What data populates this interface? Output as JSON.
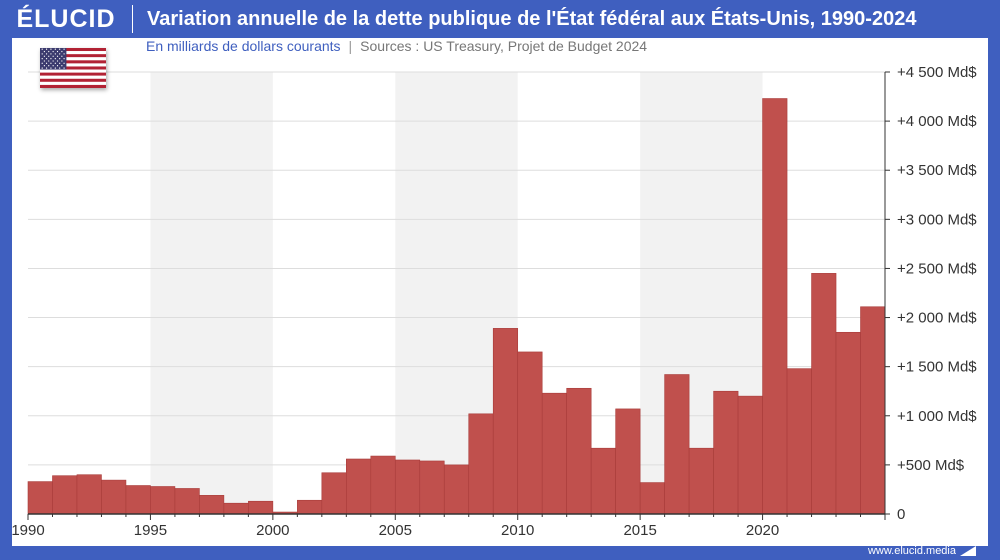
{
  "header": {
    "brand": "ÉLUCID",
    "title": "Variation annuelle de la dette publique de l'État fédéral aux États-Unis, 1990-2024"
  },
  "subtitle": {
    "unit": "En milliards de dollars courants",
    "separator": "|",
    "sources": "Sources : US Treasury, Projet de Budget 2024"
  },
  "footer": {
    "url": "www.elucid.media"
  },
  "colors": {
    "background": "#3f5fbf",
    "bar": "#c0504d",
    "bar_outline": "#a83c3a",
    "band": "#f2f2f2",
    "grid": "#dddddd"
  },
  "icons": {
    "flag": "us-flag-icon",
    "footer_mark": "elucid-logo-mark-icon"
  },
  "chart_data": {
    "type": "bar",
    "x": [
      1990,
      1991,
      1992,
      1993,
      1994,
      1995,
      1996,
      1997,
      1998,
      1999,
      2000,
      2001,
      2002,
      2003,
      2004,
      2005,
      2006,
      2007,
      2008,
      2009,
      2010,
      2011,
      2012,
      2013,
      2014,
      2015,
      2016,
      2017,
      2018,
      2019,
      2020,
      2021,
      2022,
      2023,
      2024
    ],
    "values": [
      330,
      390,
      400,
      345,
      290,
      280,
      260,
      190,
      110,
      130,
      20,
      140,
      420,
      560,
      590,
      550,
      540,
      500,
      1020,
      1890,
      1650,
      1230,
      1280,
      670,
      1070,
      320,
      1420,
      670,
      1250,
      1200,
      4230,
      1480,
      2450,
      1850,
      2110
    ],
    "x_tick_labels": [
      "1990",
      "1995",
      "2000",
      "2005",
      "2010",
      "2015",
      "2020"
    ],
    "x_tick_values": [
      1990,
      1995,
      2000,
      2005,
      2010,
      2015,
      2020
    ],
    "y_tick_values": [
      0,
      500,
      1000,
      1500,
      2000,
      2500,
      3000,
      3500,
      4000,
      4500
    ],
    "y_tick_labels": [
      "0",
      "+500 Md$",
      "+1 000 Md$",
      "+1 500 Md$",
      "+2 000 Md$",
      "+2 500 Md$",
      "+3 000 Md$",
      "+3 500 Md$",
      "+4 000 Md$",
      "+4 500 Md$"
    ],
    "ylim": [
      0,
      4500
    ],
    "xlim": [
      1990,
      2025
    ],
    "grid": true,
    "y_axis_side": "right",
    "alternate_bands": true
  }
}
